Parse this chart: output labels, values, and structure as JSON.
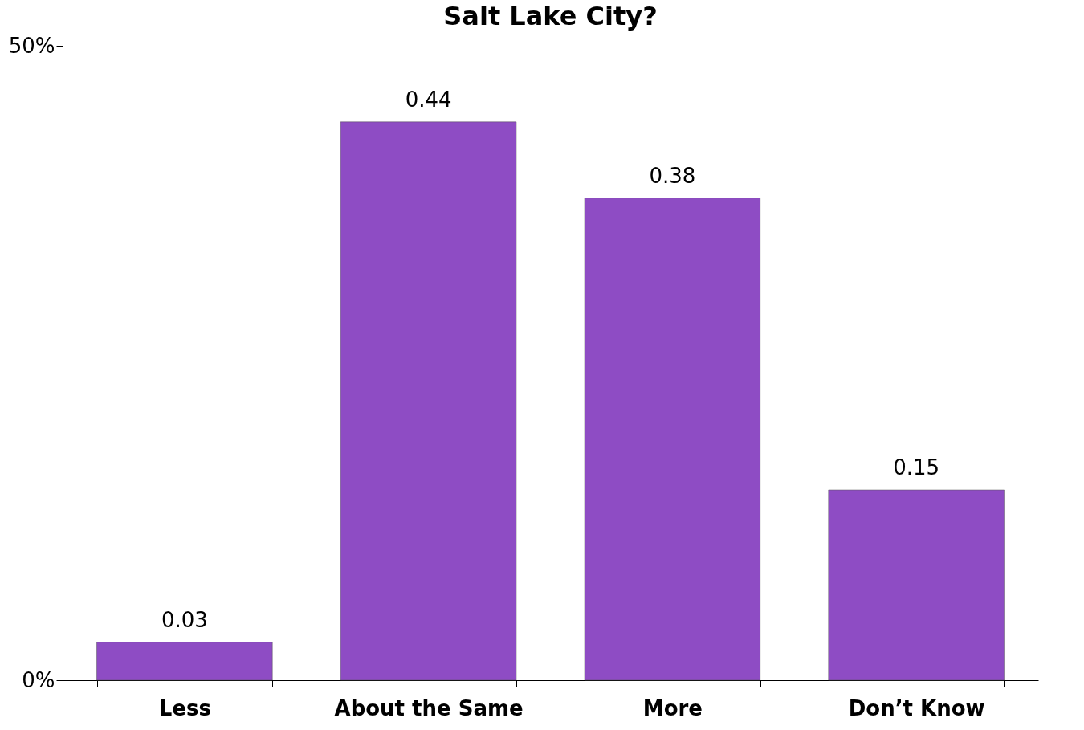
{
  "chart_data": {
    "type": "bar",
    "title": "Salt Lake City?",
    "categories": [
      "Less",
      "About the Same",
      "More",
      "Don’t Know"
    ],
    "values": [
      0.03,
      0.44,
      0.38,
      0.15
    ],
    "color": "#8e4cc4",
    "ylim": [
      0,
      0.5
    ],
    "yticks": [
      {
        "value": 0,
        "label": "0%"
      },
      {
        "value": 0.5,
        "label": "50%"
      }
    ],
    "data_labels": true,
    "grid": false
  }
}
